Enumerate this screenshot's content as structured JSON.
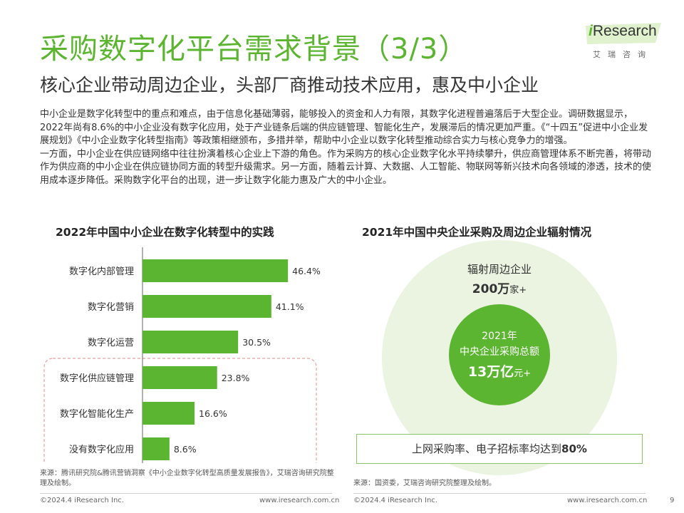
{
  "title": "采购数字化平台需求背景（3/3）",
  "subtitle": "核心企业带动周边企业，头部厂商推动技术应用，惠及中小企业",
  "logo": {
    "brand_i": "i",
    "brand_rest": "Research",
    "cn": "艾瑞咨询"
  },
  "body": {
    "p1": "中小企业是数字化转型中的重点和难点，由于信息化基础薄弱，能够投入的资金和人力有限，其数字化进程普遍落后于大型企业。调研数据显示，2022年尚有8.6%的中小企业没有数字化应用，处于产业链条后端的供应链管理、智能化生产，发展滞后的情况更加严重。《“十四五”促进中小企业发展规划》《中小企业数字化转型指南》等政策相继颁布，多措并举，帮助中小企业以数字化转型推动综合实力与核心竞争力的增强。",
    "p2": "一方面，中小企业在供应链网络中往往扮演着核心企业上下游的角色。作为采购方的核心企业数字化水平持续攀升，供应商管理体系不断完善，将带动作为供应商的中小企业在供应链协同方面的转型升级需求。另一方面，随着云计算、大数据、人工智能、物联网等新兴技术向各领域的渗透，技术的使用成本逐步降低。采购数字化平台的出现，进一步让数字化能力惠及广大的中小企业。"
  },
  "chart_data": [
    {
      "type": "bar",
      "orientation": "horizontal",
      "title": "2022年中国中小企业在数字化转型中的实践",
      "categories": [
        "数字化内部管理",
        "数字化营销",
        "数字化运营",
        "数字化供应链管理",
        "数字化智能化生产",
        "没有数字化应用"
      ],
      "values": [
        46.4,
        41.1,
        30.5,
        23.8,
        16.6,
        8.6
      ],
      "labels": [
        "46.4%",
        "41.1%",
        "30.5%",
        "23.8%",
        "16.6%",
        "8.6%"
      ],
      "highlighted": [
        "数字化供应链管理",
        "数字化智能化生产",
        "没有数字化应用"
      ],
      "xlim": [
        0,
        50
      ],
      "color": "#5cb531",
      "source": "来源：腾讯研究院&腾讯营销洞察《中小企业数字化转型高质量发展报告》，艾瑞咨询研究院整理及绘制。"
    },
    {
      "type": "other",
      "title": "2021年中国中央企业采购及周边企业辐射情况",
      "outer_label": "辐射周边企业",
      "outer_value": "200万",
      "outer_unit": "家+",
      "inner_year": "2021年",
      "inner_label": "中央企业采购总额",
      "inner_value": "13万亿",
      "inner_unit": "元+",
      "bottom_text": "上网采购率、电子招标率均达到",
      "bottom_value": "80%",
      "source": "来源：国资委，艾瑞咨询研究院整理及绘制。"
    }
  ],
  "footer": {
    "left_copyright": "©2024.4 iResearch Inc.",
    "left_url": "www.iresearch.com.cn",
    "right_copyright": "©2024.4 iResearch Inc.",
    "right_url": "www.iresearch.com.cn",
    "page": "9"
  },
  "colors": {
    "accent": "#5cb531",
    "light": "#eaf4e1",
    "highlight_border": "#e8a0a0"
  }
}
